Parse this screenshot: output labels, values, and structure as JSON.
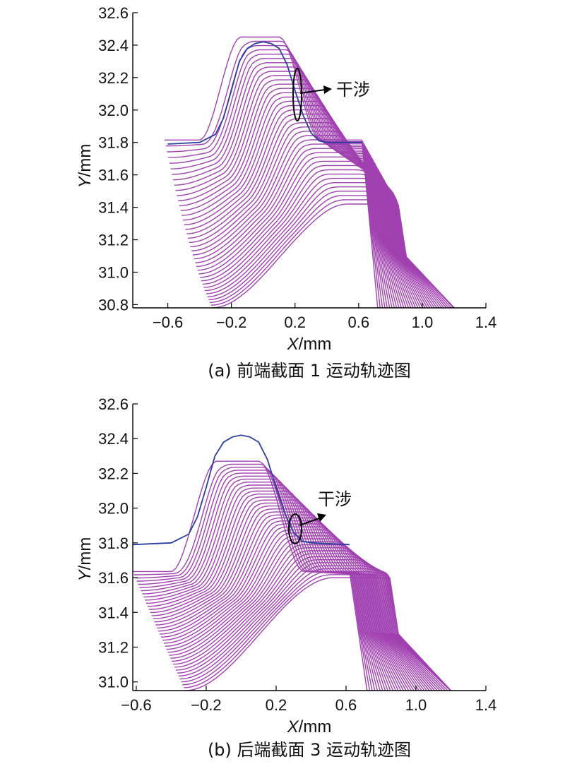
{
  "figure": {
    "subplots": [
      {
        "id": "a",
        "caption": "(a) 前端截面 1 运动轨迹图",
        "xlabel_var": "X",
        "xlabel_unit": "/mm",
        "ylabel_var": "Y",
        "ylabel_unit": "/mm",
        "annotation": "干涉"
      },
      {
        "id": "b",
        "caption": "(b) 后端截面 3 运动轨迹图",
        "xlabel_var": "X",
        "xlabel_unit": "/mm",
        "ylabel_var": "Y",
        "ylabel_unit": "/mm",
        "annotation": "干涉"
      }
    ]
  },
  "chart_data": [
    {
      "type": "line",
      "title": "(a) 前端截面 1 运动轨迹图",
      "xlabel": "X/mm",
      "ylabel": "Y/mm",
      "xlim": [
        -0.82,
        1.4
      ],
      "ylim": [
        30.78,
        32.6
      ],
      "xticks": [
        -0.6,
        -0.2,
        0.2,
        0.6,
        1.0,
        1.4
      ],
      "xtick_labels": [
        "−0.6",
        "−0.2",
        "0.2",
        "0.6",
        "1.0",
        "1.4"
      ],
      "yticks": [
        30.8,
        31.0,
        31.2,
        31.4,
        31.6,
        31.8,
        32.0,
        32.2,
        32.4,
        32.6
      ],
      "ytick_labels": [
        "30.8",
        "31.0",
        "31.2",
        "31.4",
        "31.6",
        "31.8",
        "32.0",
        "32.2",
        "32.4",
        "32.6"
      ],
      "grid": false,
      "colors": {
        "tool_path": "#a040b0",
        "workpiece": "#2b3f9e",
        "annotation": "#000000"
      },
      "reference_profile": {
        "x": [
          -0.6,
          -0.4,
          -0.3,
          -0.25,
          -0.2,
          -0.15,
          -0.1,
          -0.05,
          0.0,
          0.05,
          0.1,
          0.15,
          0.2,
          0.25,
          0.3,
          0.35,
          0.4,
          0.62
        ],
        "y": [
          31.79,
          31.8,
          31.85,
          31.95,
          32.12,
          32.3,
          32.38,
          32.41,
          32.42,
          32.41,
          32.38,
          32.28,
          32.12,
          31.97,
          31.86,
          31.81,
          31.8,
          31.8
        ]
      },
      "trajectory_family": {
        "count": 40,
        "first_pos": {
          "x_left": -0.62,
          "x_right": 0.62,
          "base_y": 31.815,
          "top_y": 32.45,
          "tooth_center_x": -0.02
        },
        "last_pos": {
          "x_left": -0.62,
          "x_right": 0.85,
          "base_y": 31.42,
          "top_y": 31.42,
          "tooth_center_x": 0.6
        },
        "min_y": 30.78,
        "max_x": 1.2
      },
      "interference_marker": {
        "x": 0.22,
        "y": 32.08
      }
    },
    {
      "type": "line",
      "title": "(b) 后端截面 3 运动轨迹图",
      "xlabel": "X/mm",
      "ylabel": "Y/mm",
      "xlim": [
        -0.62,
        1.4
      ],
      "ylim": [
        30.95,
        32.6
      ],
      "xticks": [
        -0.6,
        -0.2,
        0.2,
        0.6,
        1.0,
        1.4
      ],
      "xtick_labels": [
        "−0.6",
        "−0.2",
        "0.2",
        "0.6",
        "1.0",
        "1.4"
      ],
      "yticks": [
        31.0,
        31.2,
        31.4,
        31.6,
        31.8,
        32.0,
        32.2,
        32.4,
        32.6
      ],
      "ytick_labels": [
        "31.0",
        "31.2",
        "31.4",
        "31.6",
        "31.8",
        "32.0",
        "32.2",
        "32.4",
        "32.6"
      ],
      "grid": false,
      "colors": {
        "tool_path": "#a040b0",
        "workpiece": "#2b3f9e",
        "annotation": "#000000"
      },
      "reference_profile": {
        "x": [
          -0.62,
          -0.4,
          -0.3,
          -0.25,
          -0.2,
          -0.15,
          -0.1,
          -0.05,
          0.0,
          0.05,
          0.1,
          0.15,
          0.2,
          0.25,
          0.3,
          0.35,
          0.4,
          0.62
        ],
        "y": [
          31.79,
          31.8,
          31.85,
          31.95,
          32.12,
          32.3,
          32.38,
          32.41,
          32.42,
          32.41,
          32.38,
          32.28,
          32.12,
          31.97,
          31.86,
          31.81,
          31.8,
          31.79
        ]
      },
      "trajectory_family": {
        "count": 40,
        "first_pos": {
          "x_left": -0.62,
          "x_right": 0.62,
          "base_y": 31.635,
          "top_y": 32.27,
          "tooth_center_x": -0.02
        },
        "last_pos": {
          "x_left": -0.62,
          "x_right": 0.85,
          "base_y": 31.6,
          "top_y": 31.6,
          "tooth_center_x": 0.62
        },
        "min_y": 30.95,
        "max_x": 1.2
      },
      "interference_marker": {
        "x": 0.32,
        "y": 31.88
      }
    }
  ]
}
